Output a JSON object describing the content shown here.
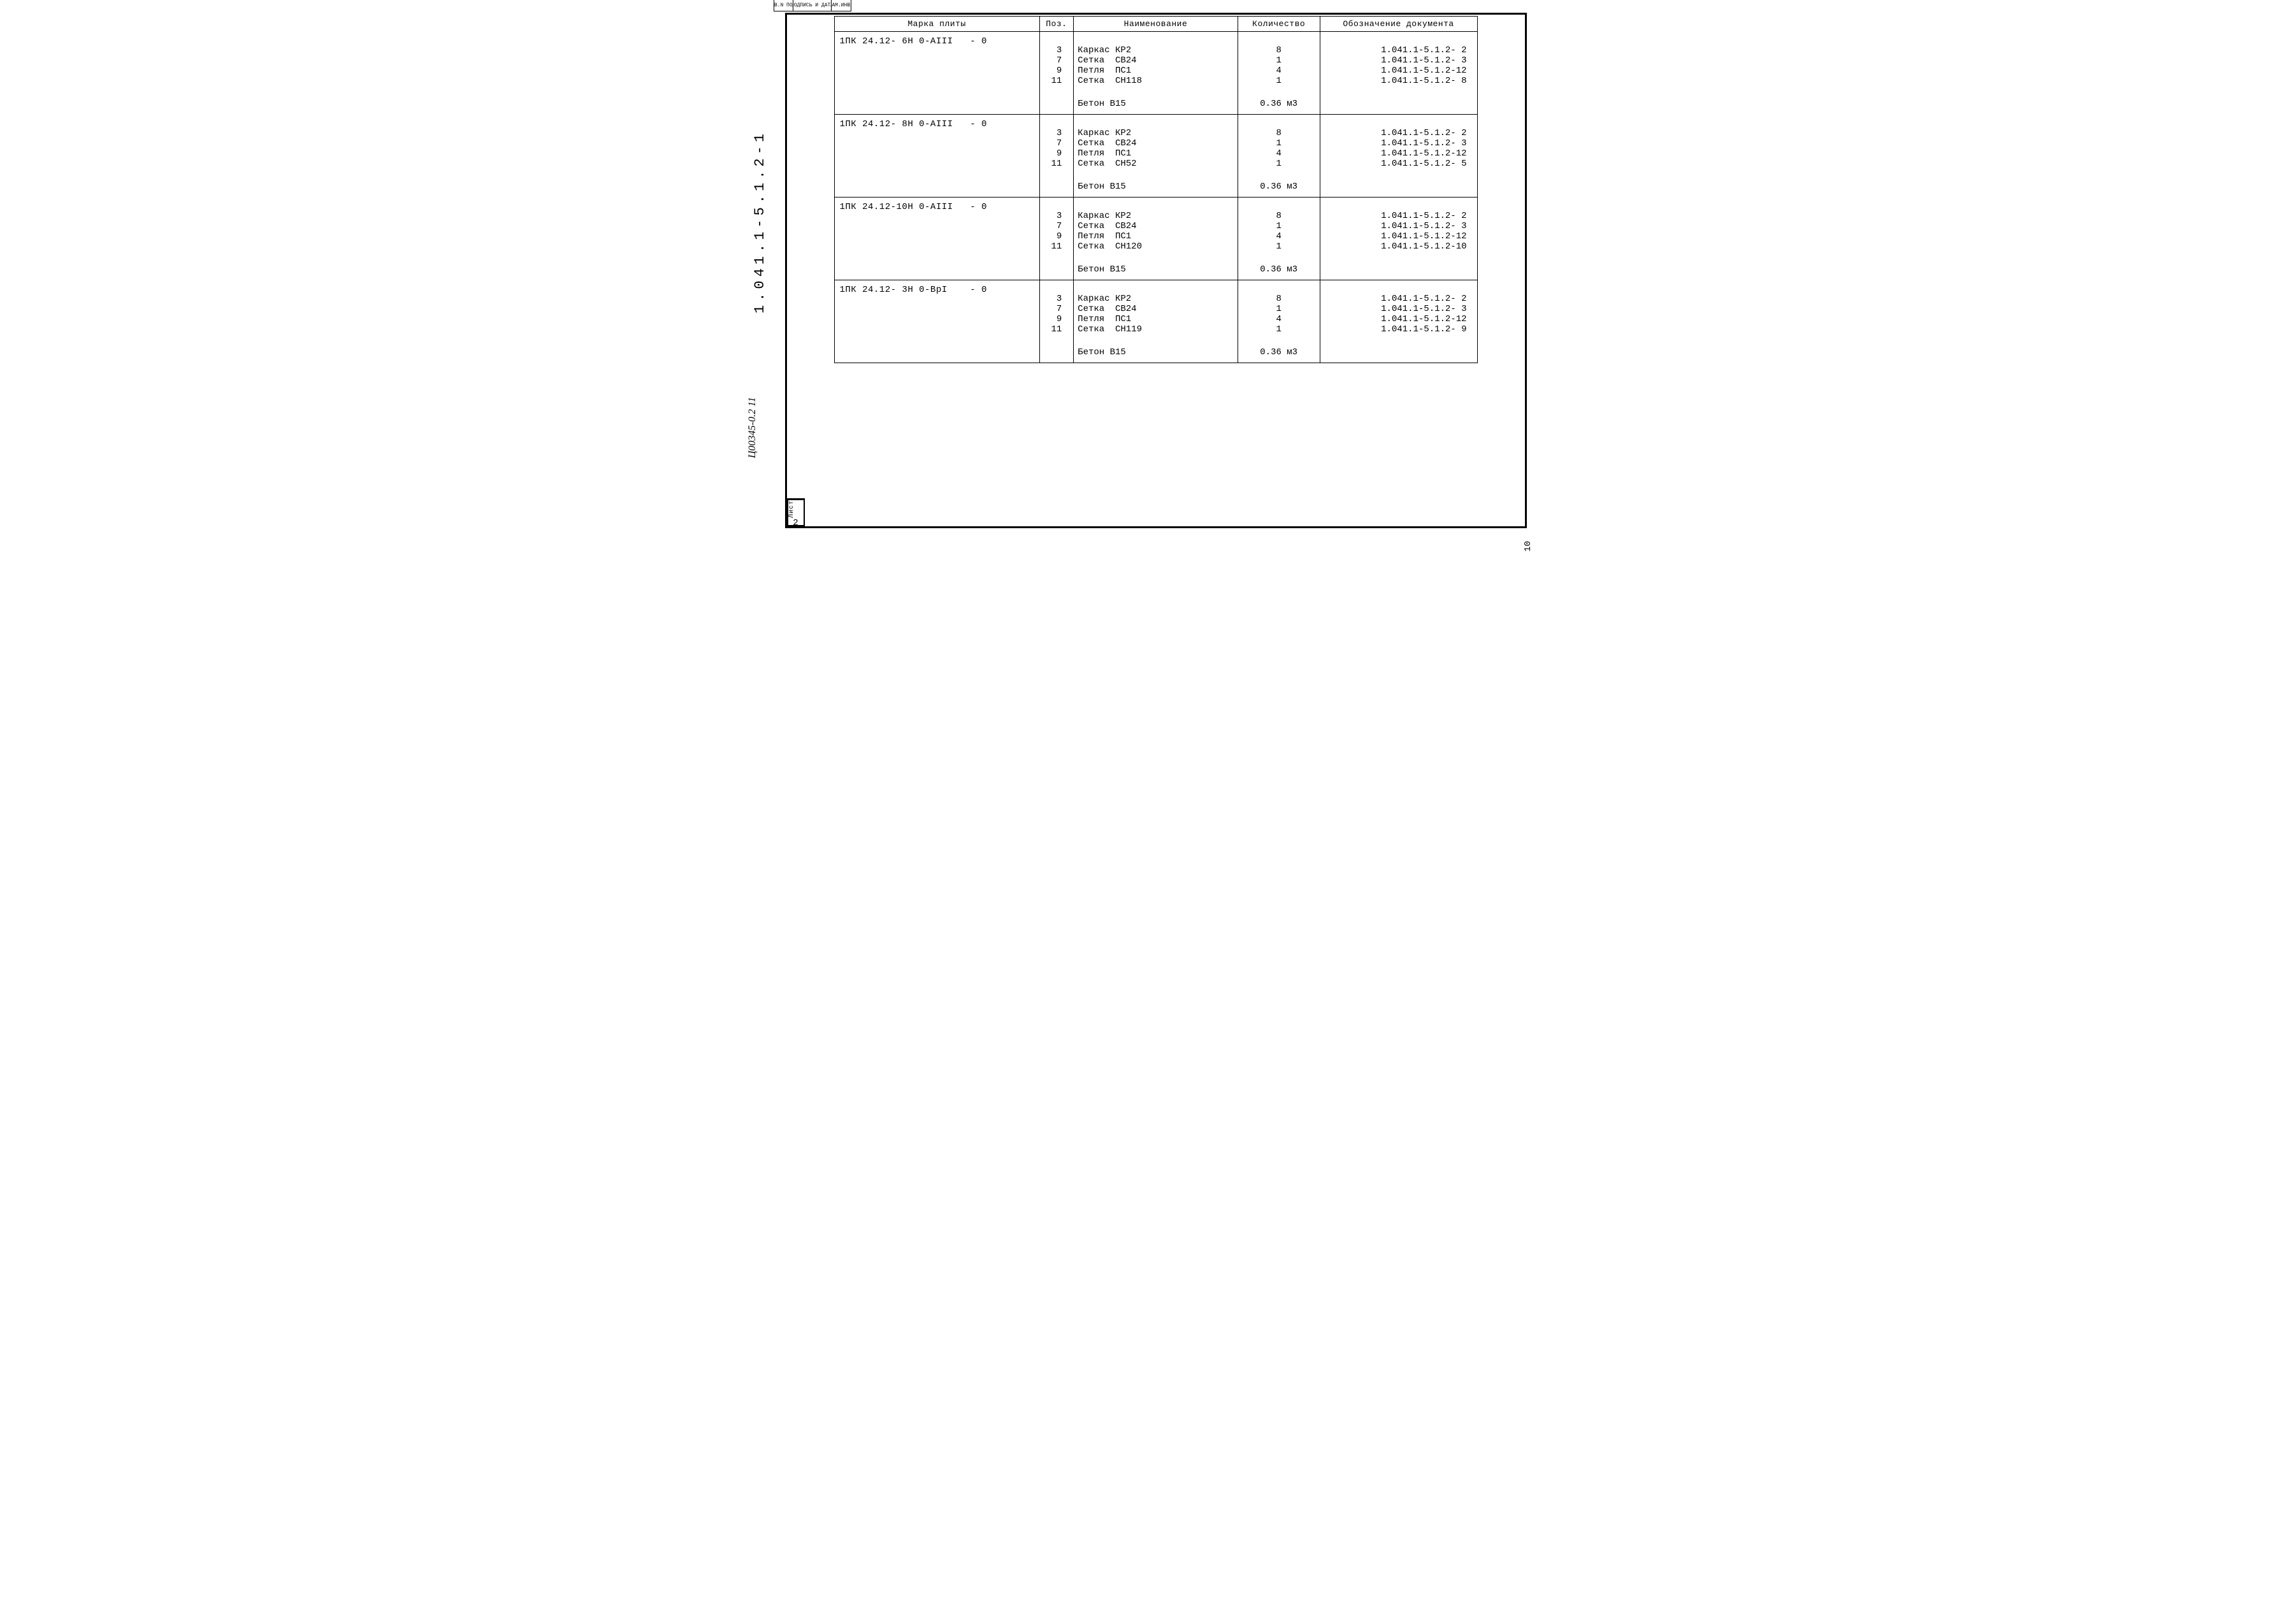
{
  "topStamp": {
    "c1": "ИНВ.N ПОДЛ",
    "c2": "ПОДПИСЬ И ДАТА",
    "c3": "ВЗАМ.ИНВ.N"
  },
  "headers": {
    "marka": "Марка плиты",
    "poz": "Поз.",
    "name": "Наименование",
    "qty": "Количество",
    "doc": "Обозначение документа"
  },
  "blocks": [
    {
      "marka": "1ПК 24.12- 6Н 0-АIII   - 0",
      "poz": " 3\n 7\n 9\n11",
      "name": "Каркас КР2\nСетка  СВ24\nПетля  ПС1\nСетка  СН118",
      "qty": "8\n1\n4\n1",
      "doc": "1.041.1-5.1.2- 2\n1.041.1-5.1.2- 3\n1.041.1-5.1.2-12\n1.041.1-5.1.2- 8",
      "beton": "Бетон В15",
      "betonQty": "0.36 м3"
    },
    {
      "marka": "1ПК 24.12- 8Н 0-АIII   - 0",
      "poz": " 3\n 7\n 9\n11",
      "name": "Каркас КР2\nСетка  СВ24\nПетля  ПС1\nСетка  СН52",
      "qty": "8\n1\n4\n1",
      "doc": "1.041.1-5.1.2- 2\n1.041.1-5.1.2- 3\n1.041.1-5.1.2-12\n1.041.1-5.1.2- 5",
      "beton": "Бетон В15",
      "betonQty": "0.36 м3"
    },
    {
      "marka": "1ПК 24.12-10Н 0-АIII   - 0",
      "poz": " 3\n 7\n 9\n11",
      "name": "Каркас КР2\nСетка  СВ24\nПетля  ПС1\nСетка  СН120",
      "qty": "8\n1\n4\n1",
      "doc": "1.041.1-5.1.2- 2\n1.041.1-5.1.2- 3\n1.041.1-5.1.2-12\n1.041.1-5.1.2-10",
      "beton": "Бетон В15",
      "betonQty": "0.36 м3"
    },
    {
      "marka": "1ПК 24.12- 3Н 0-ВрI    - 0",
      "poz": " 3\n 7\n 9\n11",
      "name": "Каркас КР2\nСетка  СВ24\nПетля  ПС1\nСетка  СН119",
      "qty": "8\n1\n4\n1",
      "doc": "1.041.1-5.1.2- 2\n1.041.1-5.1.2- 3\n1.041.1-5.1.2-12\n1.041.1-5.1.2- 9",
      "beton": "Бетон В15",
      "betonQty": "0.36 м3"
    }
  ],
  "sideCode": "1.041.1-5.1.2-1",
  "sideNote": "Ц00345-0.2   11",
  "sheet": {
    "label": "Лист",
    "num": "2"
  },
  "outerPageNum": "10"
}
